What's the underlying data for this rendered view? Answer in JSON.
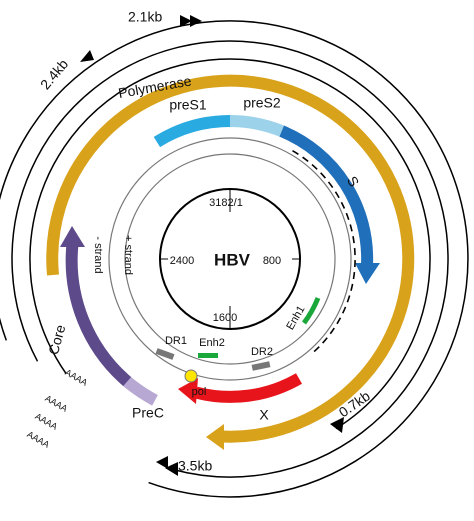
{
  "labels": {
    "transcript_2_1": "2.1kb",
    "transcript_2_4": "2.4kb",
    "polymerase": "Polymerase",
    "pres1": "preS1",
    "pres2": "preS2",
    "s": "S",
    "pos_top": "3182/1",
    "pos_left": "2400",
    "pos_right": "800",
    "pos_bottom": "1600",
    "center": "HBV",
    "minus_strand": "- strand",
    "plus_strand": "+ strand",
    "enh1": "Enh1",
    "enh2": "Enh2",
    "dr1": "DR1",
    "dr2": "DR2",
    "pol": "pol",
    "x": "X",
    "core": "Core",
    "prec": "PreC",
    "transcript_0_7": "0.7kb",
    "transcript_3_5": "3.5kb",
    "polya": [
      "AAAA",
      "AAAA",
      "AAAA",
      "AAAA"
    ]
  }
}
